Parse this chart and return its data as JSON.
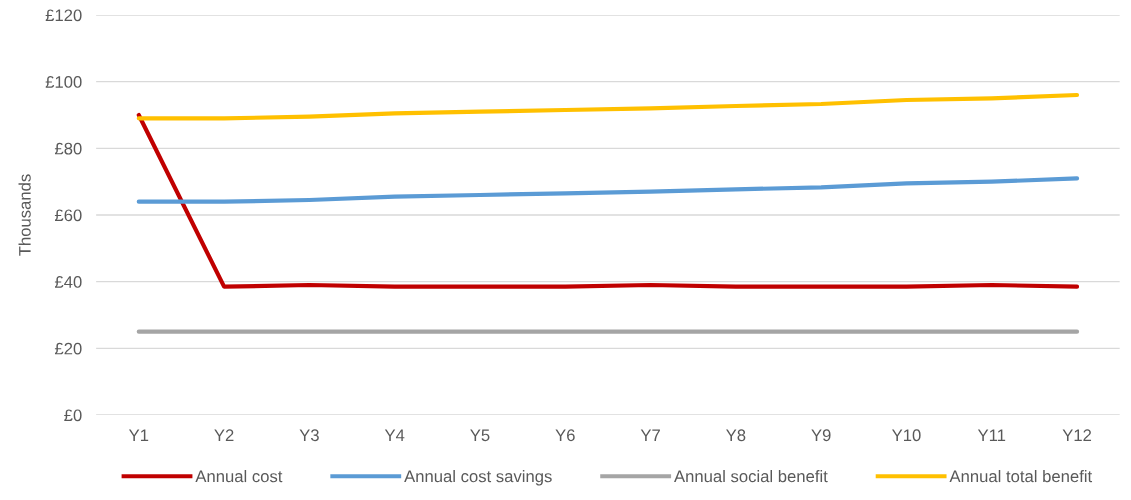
{
  "chart_data": {
    "type": "line",
    "ylabel": "Thousands",
    "categories": [
      "Y1",
      "Y2",
      "Y3",
      "Y4",
      "Y5",
      "Y6",
      "Y7",
      "Y8",
      "Y9",
      "Y10",
      "Y11",
      "Y12"
    ],
    "series": [
      {
        "name": "Annual cost",
        "color": "#c00000",
        "values": [
          90,
          38.5,
          39,
          38.5,
          38.5,
          38.5,
          39,
          38.5,
          38.5,
          38.5,
          39,
          38.5
        ]
      },
      {
        "name": "Annual cost savings",
        "color": "#5b9bd5",
        "values": [
          64,
          64,
          64.5,
          65.5,
          66,
          66.5,
          67,
          67.7,
          68.3,
          69.5,
          70,
          71
        ]
      },
      {
        "name": "Annual social benefit",
        "color": "#a5a5a5",
        "values": [
          25,
          25,
          25,
          25,
          25,
          25,
          25,
          25,
          25,
          25,
          25,
          25
        ]
      },
      {
        "name": "Annual total benefit",
        "color": "#ffc000",
        "values": [
          89,
          89,
          89.5,
          90.5,
          91,
          91.5,
          92,
          92.7,
          93.3,
          94.5,
          95,
          96
        ]
      }
    ],
    "ylim": [
      0,
      120
    ],
    "yticks": [
      {
        "value": 0,
        "label": "£0"
      },
      {
        "value": 20,
        "label": "£20"
      },
      {
        "value": 40,
        "label": "£40"
      },
      {
        "value": 60,
        "label": "£60"
      },
      {
        "value": 80,
        "label": "£80"
      },
      {
        "value": 100,
        "label": "£100"
      },
      {
        "value": 120,
        "label": "£120"
      }
    ],
    "grid": "y",
    "legend": "bottom",
    "marker": "none",
    "line_style": "solid"
  }
}
